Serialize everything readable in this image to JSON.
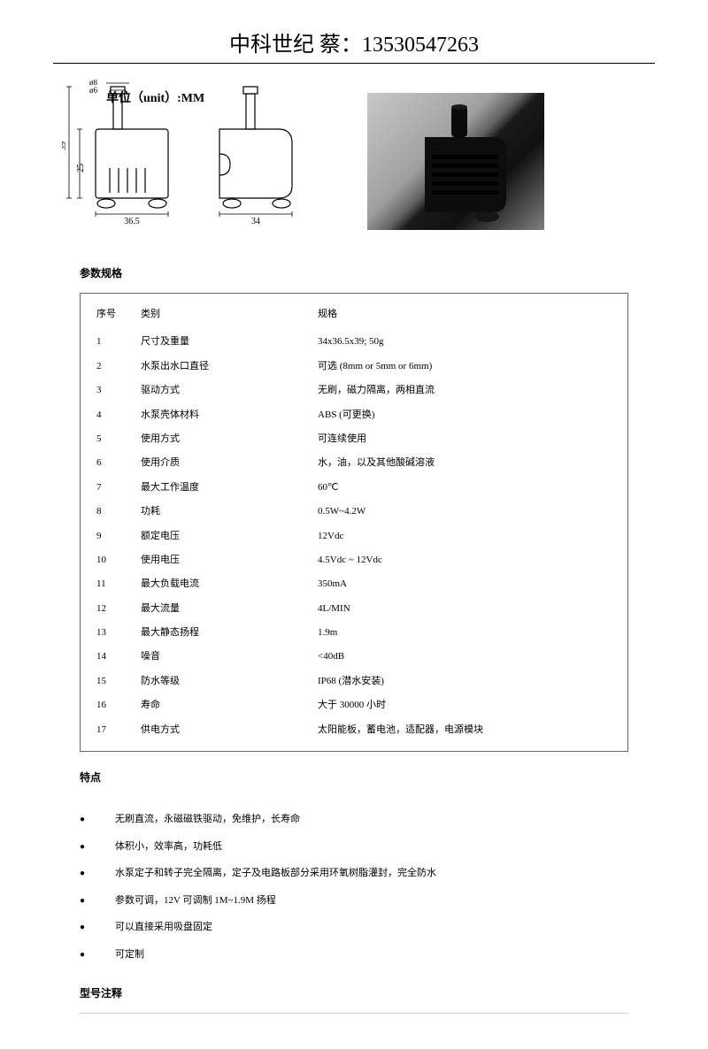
{
  "header": "中科世纪 蔡：13530547263",
  "diagram": {
    "unit_label": "单位（unit）:MM",
    "dims": {
      "width_front": "36.5",
      "width_side": "34",
      "height_body": "25",
      "height_total": "39",
      "outlet_outer": "ø8",
      "outlet_inner": "ø6"
    },
    "stroke": "#000000",
    "stroke_width": 1.2
  },
  "sections": {
    "spec_title": "参数规格",
    "features_title": "特点",
    "model_title": "型号注释"
  },
  "spec_table": {
    "headers": {
      "index": "序号",
      "category": "类别",
      "value": "规格"
    },
    "rows": [
      {
        "index": "1",
        "category": "尺寸及重量",
        "value": "34x36.5x39; 50g"
      },
      {
        "index": "2",
        "category": "水泵出水口直径",
        "value": "可选 (8mm or 5mm or 6mm)"
      },
      {
        "index": "3",
        "category": "驱动方式",
        "value": "无刷，磁力隔离，两相直流"
      },
      {
        "index": "4",
        "category": "水泵壳体材料",
        "value": "ABS (可更换)"
      },
      {
        "index": "5",
        "category": "使用方式",
        "value": "可连续使用"
      },
      {
        "index": "6",
        "category": "使用介质",
        "value": "水，油，以及其他酸碱溶液"
      },
      {
        "index": "7",
        "category": "最大工作温度",
        "value": "60℃"
      },
      {
        "index": "8",
        "category": "功耗",
        "value": "0.5W~4.2W"
      },
      {
        "index": "9",
        "category": "额定电压",
        "value": "12Vdc"
      },
      {
        "index": "10",
        "category": "使用电压",
        "value": "4.5Vdc ~ 12Vdc"
      },
      {
        "index": "11",
        "category": "最大负载电流",
        "value": "350mA"
      },
      {
        "index": "12",
        "category": "最大流量",
        "value": "4L/MIN"
      },
      {
        "index": "13",
        "category": "最大静态扬程",
        "value": "1.9m"
      },
      {
        "index": "14",
        "category": "噪音",
        "value": "<40dB"
      },
      {
        "index": "15",
        "category": "防水等级",
        "value": "IP68 (潜水安装)"
      },
      {
        "index": "16",
        "category": "寿命",
        "value": "大于 30000 小时"
      },
      {
        "index": "17",
        "category": "供电方式",
        "value": "太阳能板，蓄电池，适配器，电源模块"
      }
    ]
  },
  "features": [
    "无刷直流，永磁磁铁驱动，免维护，长寿命",
    "体积小，效率高，功耗低",
    "水泵定子和转子完全隔离，定子及电路板部分采用环氧树脂灌封，完全防水",
    "参数可调，12V 可调制 1M~1.9M 扬程",
    "可以直接采用吸盘固定",
    "可定制"
  ],
  "colors": {
    "text": "#000000",
    "border": "#666666",
    "rule": "#cccccc",
    "bg": "#ffffff"
  }
}
